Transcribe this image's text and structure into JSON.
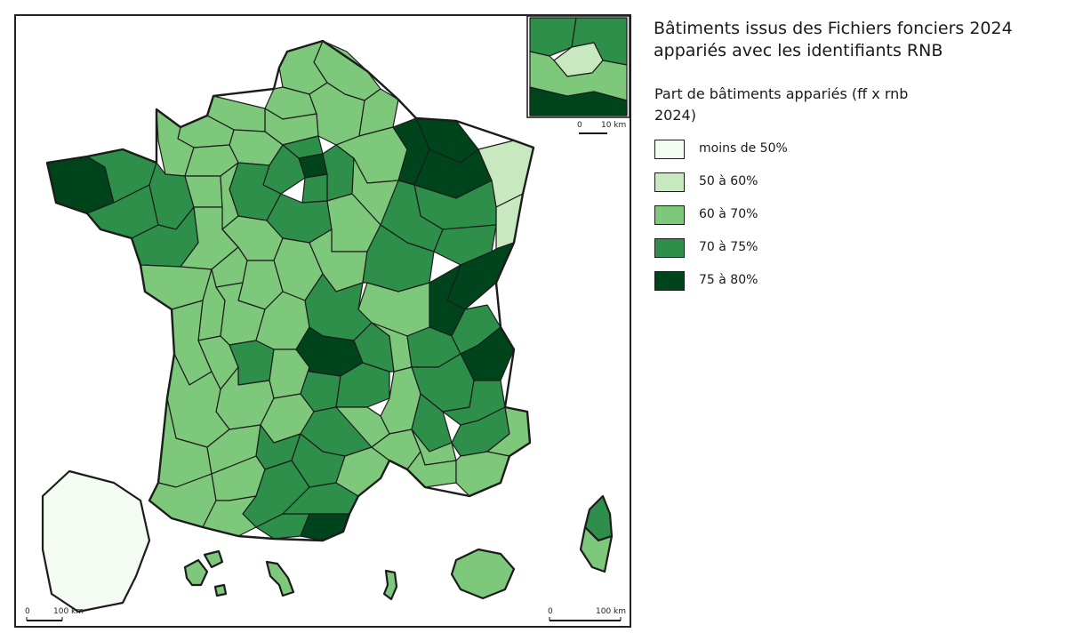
{
  "title": "Bâtiments issus des Fichiers fonciers 2024 appariés avec les identifiants RNB",
  "legend": {
    "title": "Part de bâtiments appariés (ff x rnb 2024)",
    "items": [
      {
        "label": "moins de 50%",
        "color": "#f4fbf2"
      },
      {
        "label": "50 à 60%",
        "color": "#c8e9c0"
      },
      {
        "label": "60 à 70%",
        "color": "#7ec87c"
      },
      {
        "label": "70 à 75%",
        "color": "#2e8f4a"
      },
      {
        "label": "75 à 80%",
        "color": "#00441b"
      }
    ]
  },
  "scales": {
    "main_left": {
      "zero": "0",
      "dist": "100 km"
    },
    "main_right": {
      "zero": "0",
      "dist": "100 km"
    },
    "inset": {
      "zero": "0",
      "dist": "10 km"
    }
  }
}
